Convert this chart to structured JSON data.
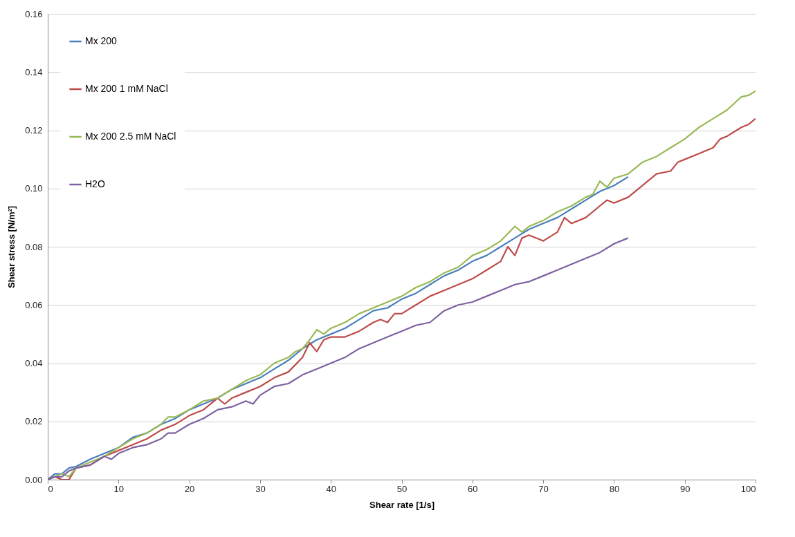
{
  "chart_data": {
    "type": "line",
    "xlabel": "Shear rate [1/s]",
    "ylabel": "Shear stress [N/m²]",
    "xlim": [
      0,
      100
    ],
    "xticks": [
      0,
      10,
      20,
      30,
      40,
      50,
      60,
      70,
      80,
      90,
      100
    ],
    "ylim": [
      0,
      0.16
    ],
    "yticks": [
      {
        "value": 0,
        "label": "0.00"
      },
      {
        "value": 0.02,
        "label": "0.02"
      },
      {
        "value": 0.04,
        "label": "0.04"
      },
      {
        "value": 0.06,
        "label": "0.06"
      },
      {
        "value": 0.08,
        "label": "0.08"
      },
      {
        "value": 0.1,
        "label": "0.10"
      },
      {
        "value": 0.12,
        "label": "0.12"
      },
      {
        "value": 0.14,
        "label": "0.14"
      },
      {
        "value": 0.16,
        "label": "0.16"
      }
    ],
    "grid": "y",
    "legend": "top left",
    "marker": "none",
    "line_style": "solid",
    "series": [
      {
        "name": "Mx 200",
        "color": "#4a7ebb",
        "x": [
          0,
          1,
          2,
          3,
          4,
          6,
          8,
          10,
          12,
          14,
          16,
          18,
          20,
          22,
          24,
          26,
          28,
          30,
          32,
          34,
          36,
          38,
          40,
          42,
          44,
          46,
          48,
          50,
          52,
          54,
          56,
          58,
          60,
          62,
          64,
          66,
          68,
          70,
          72,
          74,
          76,
          78,
          80,
          82
        ],
        "values": [
          0,
          0.002,
          0.002,
          0.004,
          0.0045,
          0.007,
          0.009,
          0.011,
          0.0145,
          0.016,
          0.019,
          0.021,
          0.024,
          0.026,
          0.028,
          0.031,
          0.033,
          0.035,
          0.038,
          0.041,
          0.045,
          0.048,
          0.05,
          0.052,
          0.055,
          0.058,
          0.059,
          0.062,
          0.064,
          0.067,
          0.07,
          0.072,
          0.075,
          0.077,
          0.08,
          0.083,
          0.086,
          0.088,
          0.09,
          0.093,
          0.096,
          0.099,
          0.101,
          0.104
        ]
      },
      {
        "name": "Mx 200 1 mM NaCl",
        "color": "#be4b48",
        "x": [
          0,
          1,
          2,
          3,
          4,
          6,
          8,
          10,
          12,
          14,
          16,
          18,
          20,
          22,
          24,
          25,
          26,
          28,
          30,
          32,
          34,
          36,
          37,
          38,
          39,
          40,
          42,
          44,
          46,
          47,
          48,
          49,
          50,
          52,
          54,
          56,
          58,
          60,
          62,
          64,
          65,
          66,
          67,
          68,
          70,
          72,
          73,
          74,
          76,
          78,
          79,
          80,
          82,
          84,
          86,
          88,
          89,
          90,
          92,
          94,
          95,
          96,
          98,
          99,
          100
        ],
        "values": [
          0,
          0.001,
          0,
          0,
          0.004,
          0.005,
          0.008,
          0.01,
          0.012,
          0.014,
          0.017,
          0.019,
          0.022,
          0.024,
          0.028,
          0.026,
          0.028,
          0.03,
          0.032,
          0.035,
          0.037,
          0.042,
          0.047,
          0.044,
          0.048,
          0.049,
          0.049,
          0.051,
          0.054,
          0.055,
          0.054,
          0.057,
          0.057,
          0.06,
          0.063,
          0.065,
          0.067,
          0.069,
          0.072,
          0.075,
          0.08,
          0.077,
          0.083,
          0.084,
          0.082,
          0.085,
          0.09,
          0.088,
          0.09,
          0.094,
          0.096,
          0.095,
          0.097,
          0.101,
          0.105,
          0.106,
          0.109,
          0.11,
          0.112,
          0.114,
          0.117,
          0.118,
          0.121,
          0.122,
          0.124
        ]
      },
      {
        "name": "Mx 200 2.5 mM NaCl",
        "color": "#98b954",
        "x": [
          0,
          1,
          2,
          3,
          4,
          6,
          8,
          10,
          12,
          14,
          16,
          17,
          18,
          20,
          22,
          24,
          26,
          28,
          30,
          32,
          34,
          35,
          36,
          37,
          38,
          39,
          40,
          42,
          44,
          46,
          48,
          50,
          52,
          54,
          56,
          58,
          60,
          62,
          64,
          66,
          67,
          68,
          70,
          72,
          74,
          76,
          77,
          78,
          79,
          80,
          82,
          84,
          86,
          88,
          90,
          92,
          94,
          96,
          98,
          99,
          100
        ],
        "values": [
          0,
          0.001,
          0.002,
          0.001,
          0.004,
          0.006,
          0.008,
          0.011,
          0.014,
          0.016,
          0.019,
          0.0215,
          0.0215,
          0.024,
          0.027,
          0.028,
          0.031,
          0.034,
          0.036,
          0.04,
          0.042,
          0.044,
          0.045,
          0.048,
          0.0515,
          0.05,
          0.052,
          0.054,
          0.057,
          0.059,
          0.061,
          0.063,
          0.066,
          0.068,
          0.071,
          0.073,
          0.077,
          0.079,
          0.082,
          0.087,
          0.085,
          0.087,
          0.089,
          0.092,
          0.094,
          0.097,
          0.098,
          0.1025,
          0.1005,
          0.1035,
          0.105,
          0.109,
          0.111,
          0.114,
          0.117,
          0.121,
          0.124,
          0.127,
          0.1315,
          0.132,
          0.1335
        ]
      },
      {
        "name": "H2O",
        "color": "#7d60a0",
        "x": [
          0,
          1,
          2,
          3,
          4,
          6,
          8,
          9,
          10,
          12,
          14,
          16,
          17,
          18,
          20,
          22,
          24,
          26,
          28,
          29,
          30,
          32,
          34,
          36,
          38,
          40,
          42,
          44,
          46,
          48,
          50,
          52,
          54,
          56,
          58,
          60,
          62,
          64,
          66,
          68,
          70,
          72,
          74,
          76,
          78,
          80,
          82
        ],
        "values": [
          0,
          0.001,
          0.001,
          0.003,
          0.004,
          0.005,
          0.008,
          0.007,
          0.009,
          0.011,
          0.012,
          0.014,
          0.016,
          0.016,
          0.019,
          0.021,
          0.024,
          0.025,
          0.027,
          0.026,
          0.029,
          0.032,
          0.033,
          0.036,
          0.038,
          0.04,
          0.042,
          0.045,
          0.047,
          0.049,
          0.051,
          0.053,
          0.054,
          0.058,
          0.06,
          0.061,
          0.063,
          0.065,
          0.067,
          0.068,
          0.07,
          0.072,
          0.074,
          0.076,
          0.078,
          0.081,
          0.083
        ]
      }
    ]
  }
}
